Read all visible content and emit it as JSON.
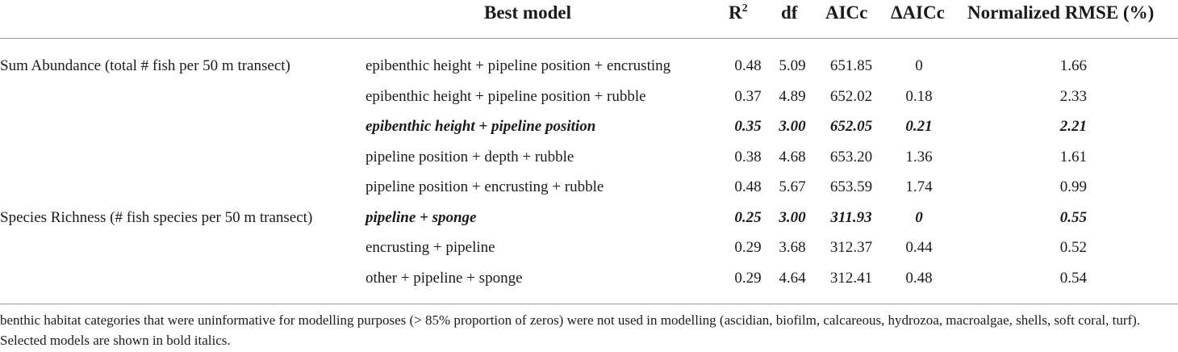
{
  "table": {
    "headers": {
      "best_model": "Best model",
      "r2_base": "R",
      "r2_sup": "2",
      "df": "df",
      "aicc": "AICc",
      "daicc": "ΔAICc",
      "nrmse": "Normalized RMSE (%)"
    },
    "rows": [
      {
        "group": "Sum Abundance (total # fish per 50 m transect)",
        "model": "epibenthic height + pipeline position + encrusting",
        "r2": "0.48",
        "df": "5.09",
        "aicc": "651.85",
        "daicc": "0",
        "nrmse": "1.66",
        "selected": false
      },
      {
        "group": "",
        "model": "epibenthic height + pipeline position + rubble",
        "r2": "0.37",
        "df": "4.89",
        "aicc": "652.02",
        "daicc": "0.18",
        "nrmse": "2.33",
        "selected": false
      },
      {
        "group": "",
        "model": "epibenthic height + pipeline position",
        "r2": "0.35",
        "df": "3.00",
        "aicc": "652.05",
        "daicc": "0.21",
        "nrmse": "2.21",
        "selected": true
      },
      {
        "group": "",
        "model": "pipeline position + depth + rubble",
        "r2": "0.38",
        "df": "4.68",
        "aicc": "653.20",
        "daicc": "1.36",
        "nrmse": "1.61",
        "selected": false
      },
      {
        "group": "",
        "model": "pipeline position + encrusting + rubble",
        "r2": "0.48",
        "df": "5.67",
        "aicc": "653.59",
        "daicc": "1.74",
        "nrmse": "0.99",
        "selected": false
      },
      {
        "group": "Species Richness (# fish species per 50 m transect)",
        "model": "pipeline + sponge",
        "r2": "0.25",
        "df": "3.00",
        "aicc": "311.93",
        "daicc": "0",
        "nrmse": "0.55",
        "selected": true
      },
      {
        "group": "",
        "model": "encrusting + pipeline",
        "r2": "0.29",
        "df": "3.68",
        "aicc": "312.37",
        "daicc": "0.44",
        "nrmse": "0.52",
        "selected": false
      },
      {
        "group": "",
        "model": "other + pipeline + sponge",
        "r2": "0.29",
        "df": "4.64",
        "aicc": "312.41",
        "daicc": "0.48",
        "nrmse": "0.54",
        "selected": false
      }
    ]
  },
  "footnote": "benthic habitat categories that were uninformative for modelling purposes (> 85% proportion of zeros) were not used in modelling (ascidian, biofilm, calcareous, hydrozoa, macroalgae, shells, soft coral, turf). Selected models are shown in bold italics."
}
